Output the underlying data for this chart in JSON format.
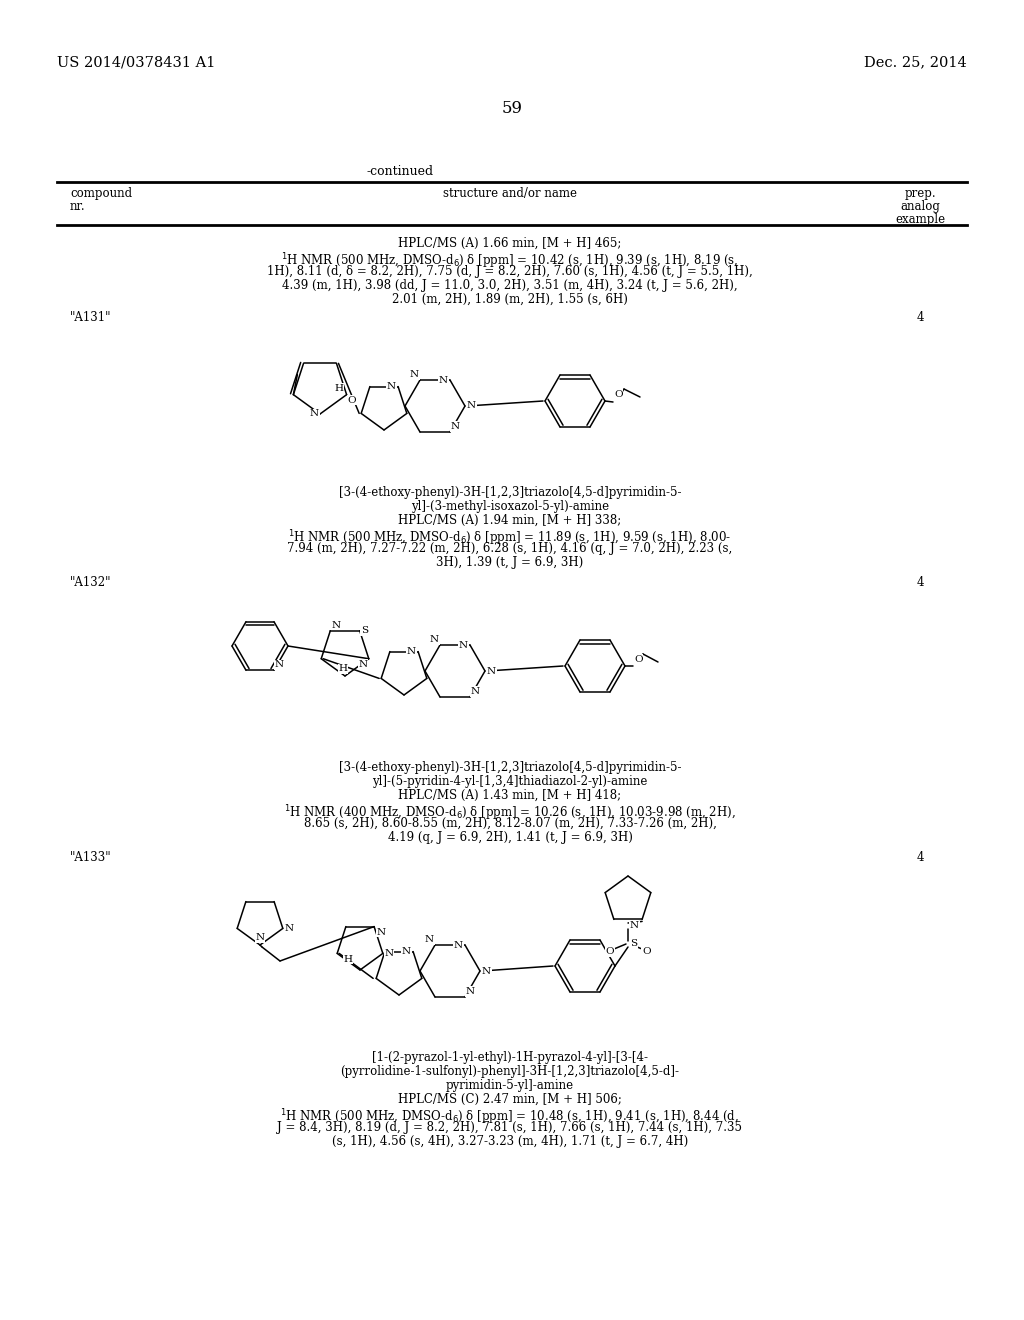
{
  "page_number": "59",
  "patent_number": "US 2014/0378431 A1",
  "patent_date": "Dec. 25, 2014",
  "continued_label": "-continued",
  "background_color": "#ffffff",
  "text_color": "#000000"
}
